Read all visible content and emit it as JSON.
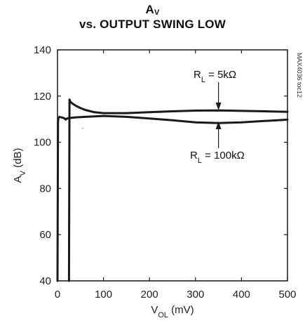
{
  "chart_data": {
    "type": "line",
    "title": {
      "main": "A",
      "sub": "V"
    },
    "subtitle": "vs. OUTPUT SWING LOW",
    "xlabel": {
      "main": "V",
      "sub": "OL",
      "unit": " (mV)"
    },
    "ylabel": {
      "main": "A",
      "sub": "V",
      "unit": " (dB)"
    },
    "xlim": [
      0,
      500
    ],
    "ylim": [
      40,
      140
    ],
    "xticks": [
      "0",
      "100",
      "200",
      "300",
      "400",
      "500"
    ],
    "yticks": [
      "40",
      "60",
      "80",
      "100",
      "120",
      "140"
    ],
    "grid": false,
    "annotations": [
      {
        "prefix": "R",
        "sub": "L",
        "suffix": " = 5kΩ",
        "points_to_series": "RL = 5kΩ"
      },
      {
        "prefix": "R",
        "sub": "L",
        "suffix": " = 100kΩ",
        "points_to_series": "RL = 100kΩ"
      }
    ],
    "figure_code": "MAX4036 toc12",
    "series": [
      {
        "name": "RL = 5kΩ",
        "x": [
          25,
          26,
          28,
          32,
          40,
          50,
          60,
          80,
          100,
          150,
          200,
          250,
          300,
          350,
          400,
          450,
          500
        ],
        "y": [
          40,
          118.5,
          117.5,
          116.8,
          115.8,
          114.8,
          114,
          113,
          112.6,
          112.6,
          113,
          113.4,
          113.7,
          113.8,
          113.6,
          113.4,
          113.2
        ]
      },
      {
        "name": "RL = 100kΩ",
        "x": [
          0,
          1,
          2,
          4,
          8,
          12,
          16,
          18,
          20,
          25,
          40,
          60,
          80,
          100,
          150,
          200,
          250,
          300,
          350,
          400,
          450,
          500
        ],
        "y": [
          40,
          108.5,
          110.5,
          111,
          110.8,
          110.6,
          110.2,
          109.8,
          110.2,
          110.5,
          110.8,
          111,
          111.2,
          111.4,
          111,
          110.3,
          109.5,
          108.6,
          108.3,
          108.6,
          109.2,
          109.8
        ]
      }
    ]
  },
  "colors": {
    "line": "#1a1a1a",
    "axis": "#1a1a1a",
    "background": "#ffffff"
  }
}
